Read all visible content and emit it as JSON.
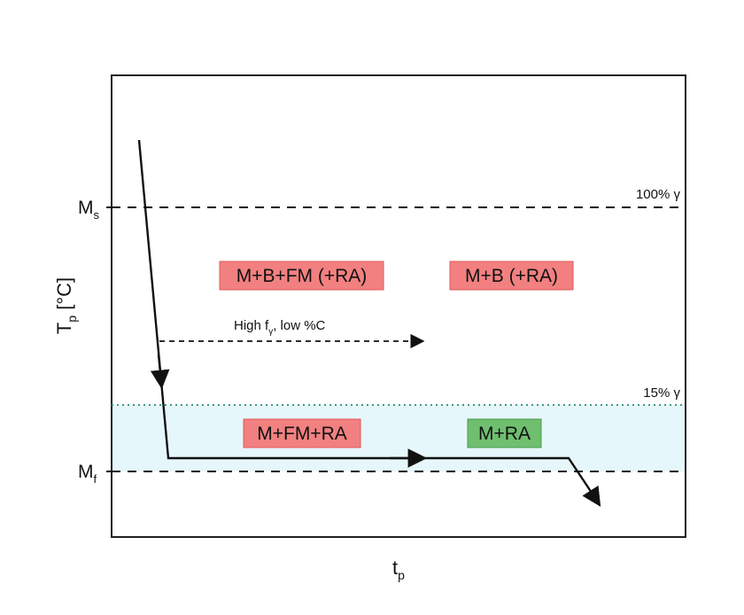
{
  "axes": {
    "y_title": "T",
    "y_title_sub": "p",
    "y_title_unit": " [°C]",
    "x_title": "t",
    "x_title_sub": "p",
    "ms_label": "M",
    "ms_sub": "s",
    "mf_label": "M",
    "mf_sub": "f"
  },
  "levels": {
    "top_line_label": "100% γ",
    "dotted_line_label": "15% γ"
  },
  "annotation": {
    "text_a": "High f",
    "text_sub": "γ",
    "text_b": ", low %C"
  },
  "regions": [
    {
      "label": "M+B+FM (+RA)",
      "color": "#f28080"
    },
    {
      "label": "M+B (+RA)",
      "color": "#f28080"
    },
    {
      "label": "M+FM+RA",
      "color": "#f28080"
    },
    {
      "label": "M+RA",
      "color": "#6fbf6f"
    }
  ],
  "colors": {
    "band_fill": "#e6f7fb",
    "dotted_line": "#3a9a8a",
    "frame": "#222222"
  }
}
